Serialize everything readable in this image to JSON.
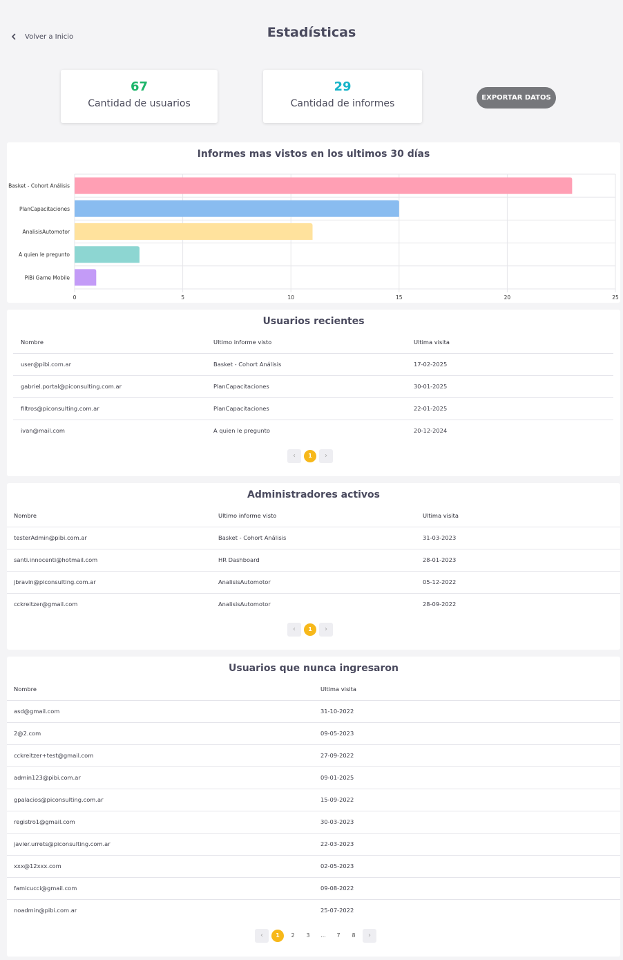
{
  "header": {
    "back_label": "Volver a Inicio",
    "title": "Estadísticas"
  },
  "stats": {
    "users": {
      "value": "67",
      "label": "Cantidad de usuarios",
      "color": "#1db56a"
    },
    "reports": {
      "value": "29",
      "label": "Cantidad de informes",
      "color": "#17b4c9"
    }
  },
  "export_label": "EXPORTAR DATOS",
  "chart_section": {
    "title": "Informes mas vistos en los ultimos 30 días"
  },
  "chart_data": {
    "type": "bar",
    "orientation": "horizontal",
    "title": "Informes mas vistos en los ultimos 30 días",
    "categories": [
      "Basket - Cohort Análisis",
      "PlanCapacitaciones",
      "AnalisisAutomotor",
      "A quien le pregunto",
      "PiBi Game Mobile"
    ],
    "values": [
      23,
      15,
      11,
      3,
      1
    ],
    "colors": [
      "#ff9fb4",
      "#89bcf0",
      "#ffe29d",
      "#8dd6d2",
      "#c39bf7"
    ],
    "xlim": [
      0,
      25
    ],
    "xticks": [
      "0",
      "5",
      "10",
      "15",
      "20",
      "25"
    ],
    "grid": true
  },
  "recent_users": {
    "title": "Usuarios recientes",
    "columns": [
      "Nombre",
      "Ultimo informe visto",
      "Ultima visita"
    ],
    "rows": [
      [
        "user@pibi.com.ar",
        "Basket - Cohort Análisis",
        "17-02-2025"
      ],
      [
        "gabriel.portal@piconsulting.com.ar",
        "PlanCapacitaciones",
        "30-01-2025"
      ],
      [
        "filtros@piconsulting.com.ar",
        "PlanCapacitaciones",
        "22-01-2025"
      ],
      [
        "ivan@mail.com",
        "A quien le pregunto",
        "20-12-2024"
      ]
    ],
    "pagination": {
      "prev": "‹",
      "pages": [
        "1"
      ],
      "next": "›"
    }
  },
  "admins": {
    "title": "Administradores activos",
    "columns": [
      "Nombre",
      "Ultimo informe visto",
      "Ultima visita"
    ],
    "rows": [
      [
        "testerAdmin@pibi.com.ar",
        "Basket - Cohort Análisis",
        "31-03-2023"
      ],
      [
        "santi.innocenti@hotmail.com",
        "HR Dashboard",
        "28-01-2023"
      ],
      [
        "jbravin@piconsulting.com.ar",
        "AnalisisAutomotor",
        "05-12-2022"
      ],
      [
        "cckreitzer@gmail.com",
        "AnalisisAutomotor",
        "28-09-2022"
      ]
    ],
    "pagination": {
      "prev": "‹",
      "pages": [
        "1"
      ],
      "next": "›"
    }
  },
  "never": {
    "title": "Usuarios que nunca ingresaron",
    "columns": [
      "Nombre",
      "Ultima visita"
    ],
    "rows": [
      [
        "asd@gmail.com",
        "31-10-2022"
      ],
      [
        "2@2.com",
        "09-05-2023"
      ],
      [
        "cckreitzer+test@gmail.com",
        "27-09-2022"
      ],
      [
        "admin123@pibi.com.ar",
        "09-01-2025"
      ],
      [
        "gpalacios@piconsulting.com.ar",
        "15-09-2022"
      ],
      [
        "registro1@gmail.com",
        "30-03-2023"
      ],
      [
        "javier.urrets@piconsulting.com.ar",
        "22-03-2023"
      ],
      [
        "xxx@12xxx.com",
        "02-05-2023"
      ],
      [
        "famicucci@gmail.com",
        "09-08-2022"
      ],
      [
        "noadmin@pibi.com.ar",
        "25-07-2022"
      ]
    ],
    "pagination": {
      "prev": "‹",
      "pages": [
        "1",
        "2",
        "3",
        "...",
        "7",
        "8"
      ],
      "next": "›"
    }
  }
}
